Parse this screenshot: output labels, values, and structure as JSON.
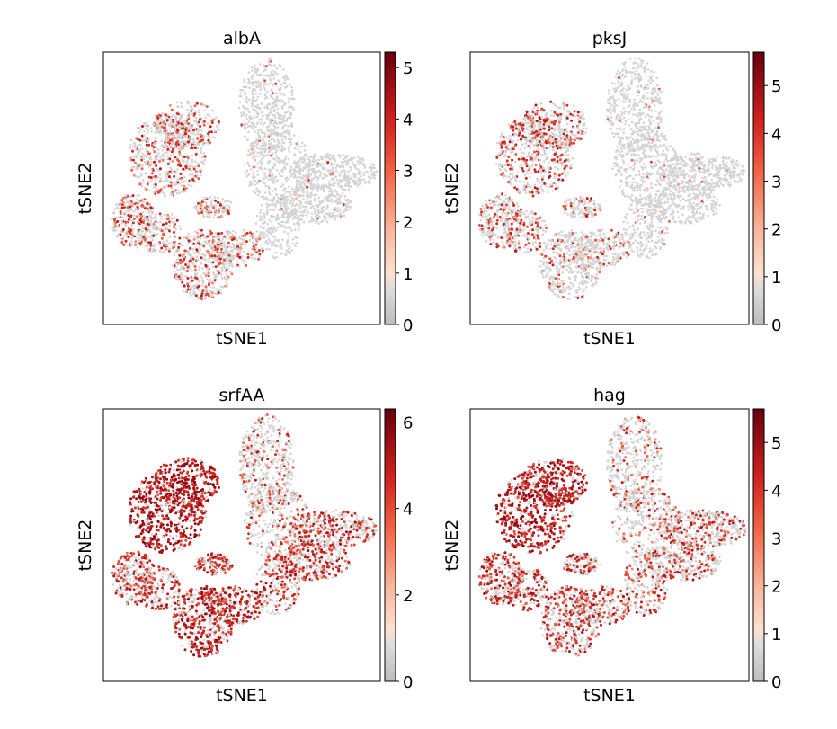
{
  "chart_data": [
    {
      "type": "scatter",
      "title": "albA",
      "xlabel": "tSNE1",
      "ylabel": "tSNE2",
      "colorbar": {
        "ticks": [
          0,
          1,
          2,
          3,
          4,
          5
        ],
        "max": 5.3,
        "colormap": "grey-to-reds"
      },
      "hotspots": [
        "upper-left cluster top edge",
        "left lobe",
        "lower cluster"
      ],
      "intensity": {
        "upper_left": 0.35,
        "left_lobe": 0.4,
        "lower": 0.3,
        "mid_small": 0.3,
        "right_arms": 0.0,
        "top_right": 0.0
      }
    },
    {
      "type": "scatter",
      "title": "pksJ",
      "xlabel": "tSNE1",
      "ylabel": "tSNE2",
      "colorbar": {
        "ticks": [
          0,
          1,
          2,
          3,
          4,
          5
        ],
        "max": 5.7,
        "colormap": "grey-to-reds"
      },
      "hotspots": [
        "upper-left cluster",
        "left lobe",
        "lower cluster"
      ],
      "intensity": {
        "upper_left": 0.4,
        "left_lobe": 0.35,
        "lower": 0.2,
        "mid_small": 0.3,
        "right_arms": 0.0,
        "top_right": 0.0
      }
    },
    {
      "type": "scatter",
      "title": "srfAA",
      "xlabel": "tSNE1",
      "ylabel": "tSNE2",
      "colorbar": {
        "ticks": [
          0,
          2,
          4,
          6
        ],
        "max": 6.3,
        "colormap": "grey-to-reds"
      },
      "hotspots": [
        "upper-left cluster (strong)",
        "lower cluster",
        "right arms"
      ],
      "intensity": {
        "upper_left": 0.95,
        "left_lobe": 0.55,
        "lower": 0.75,
        "mid_small": 0.7,
        "right_arms": 0.55,
        "top_right": 0.3
      }
    },
    {
      "type": "scatter",
      "title": "hag",
      "xlabel": "tSNE1",
      "ylabel": "tSNE2",
      "colorbar": {
        "ticks": [
          0,
          1,
          2,
          3,
          4,
          5
        ],
        "max": 5.7,
        "colormap": "grey-to-reds"
      },
      "hotspots": [
        "upper-left cluster (strong)",
        "left lobe",
        "lower cluster",
        "right arms"
      ],
      "intensity": {
        "upper_left": 0.85,
        "left_lobe": 0.6,
        "lower": 0.55,
        "mid_small": 0.6,
        "right_arms": 0.4,
        "top_right": 0.25
      }
    }
  ]
}
